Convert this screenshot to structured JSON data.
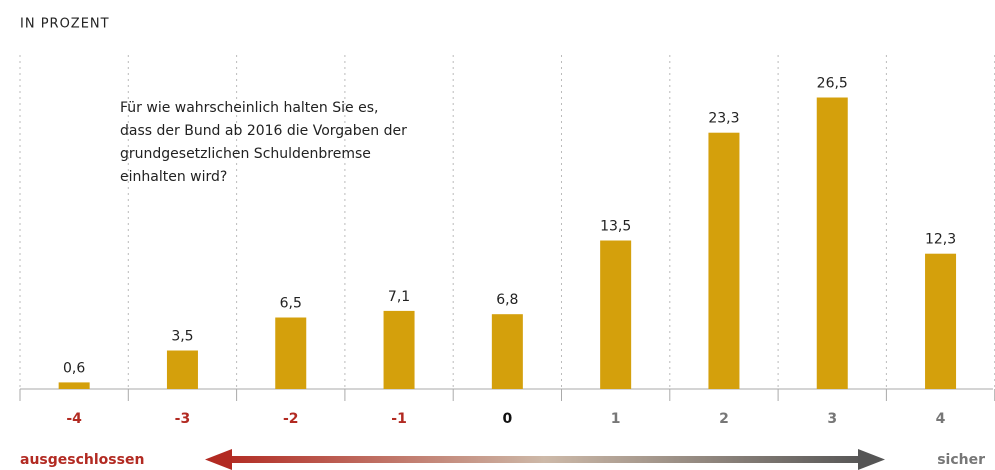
{
  "chart_data": {
    "type": "bar",
    "subtitle": "IN PROZENT",
    "annotation": [
      "Für wie wahrscheinlich halten Sie es,",
      "dass der Bund ab 2016 die Vorgaben der",
      "grundgesetzlichen Schuldenbremse",
      "einhalten wird?"
    ],
    "categories": [
      "-4",
      "-3",
      "-2",
      "-1",
      "0",
      "1",
      "2",
      "3",
      "4"
    ],
    "category_colors": [
      "#b22a22",
      "#b22a22",
      "#b22a22",
      "#b22a22",
      "#111111",
      "#777777",
      "#777777",
      "#777777",
      "#777777"
    ],
    "values": [
      0.6,
      3.5,
      6.5,
      7.1,
      6.8,
      13.5,
      23.3,
      26.5,
      12.3
    ],
    "value_labels": [
      "0,6",
      "3,5",
      "6,5",
      "7,1",
      "6,8",
      "13,5",
      "23,3",
      "26,5",
      "12,3"
    ],
    "color": "#d4a00c",
    "scale_start": "ausgeschlossen",
    "scale_end": "sicher"
  }
}
